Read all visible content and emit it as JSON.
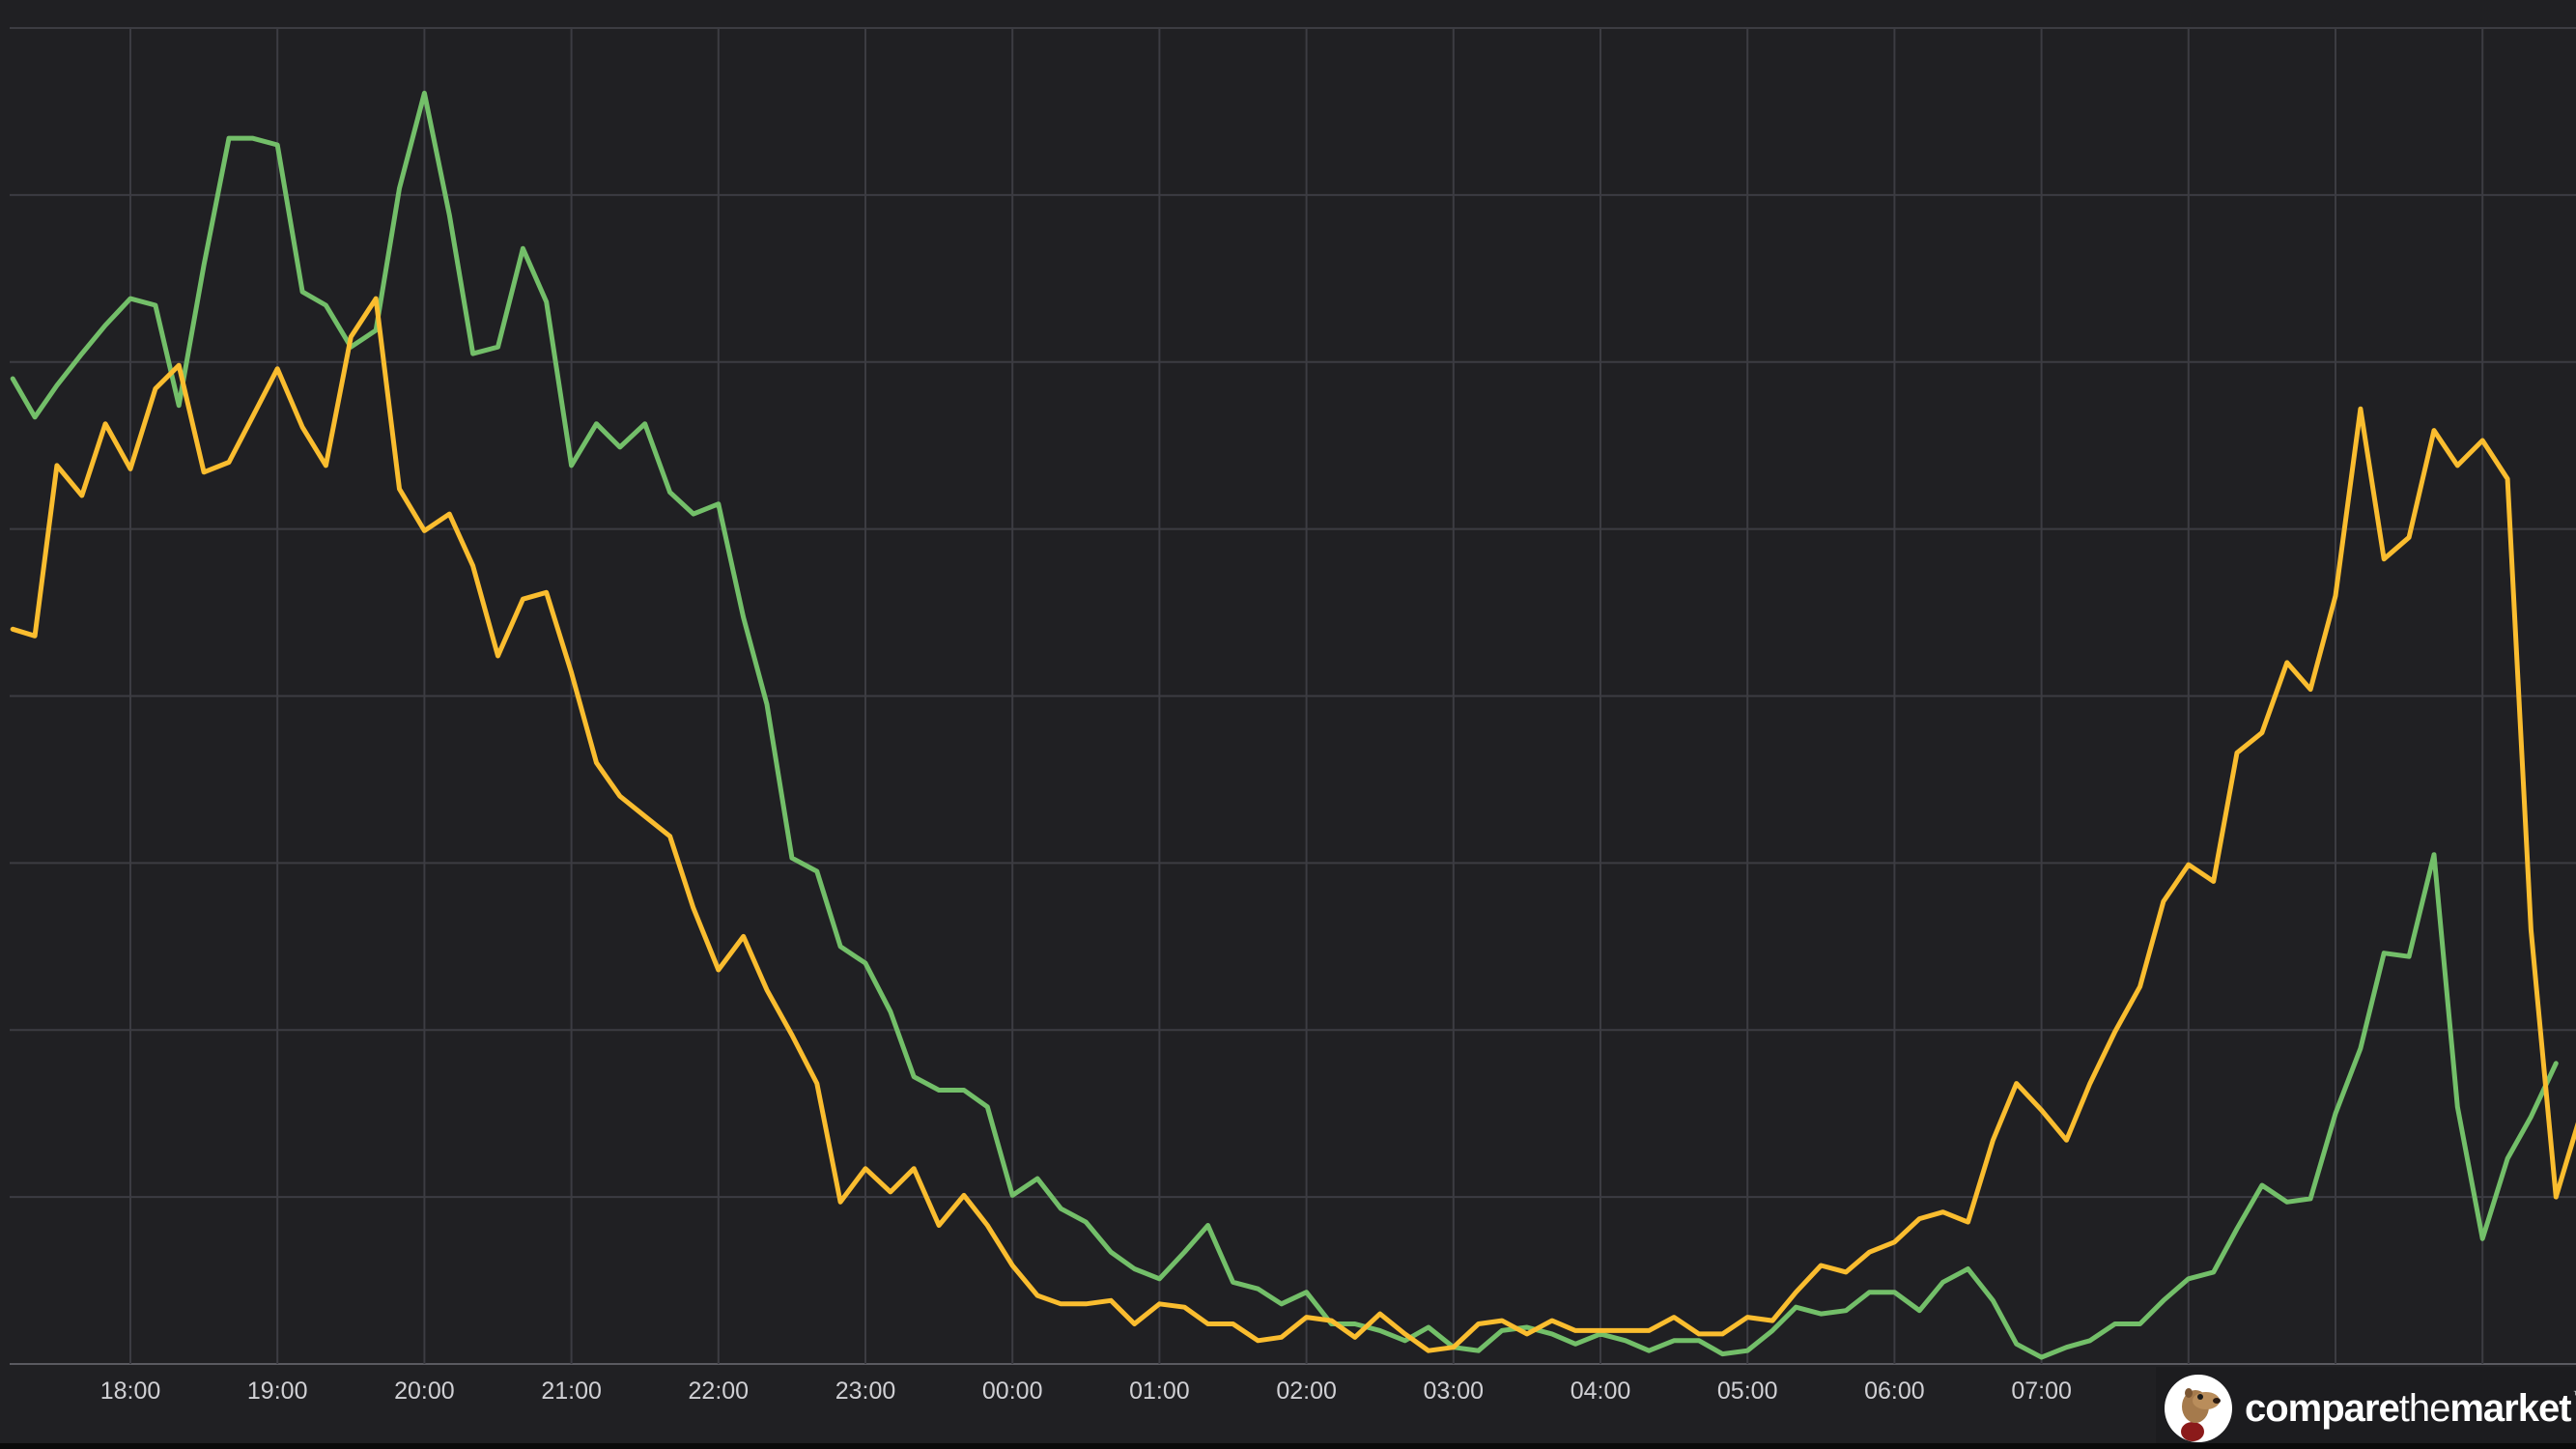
{
  "chart_data": {
    "type": "line",
    "title": "",
    "xlabel": "",
    "ylabel": "",
    "x_tick_labels": [
      "18:00",
      "19:00",
      "20:00",
      "21:00",
      "22:00",
      "23:00",
      "00:00",
      "01:00",
      "02:00",
      "03:00",
      "04:00",
      "05:00",
      "06:00",
      "07:00"
    ],
    "x_range_hours": [
      -0.8,
      16.7
    ],
    "y_range": [
      0,
      8
    ],
    "grid": true,
    "legend": "none",
    "series": [
      {
        "color": "#73bf69",
        "points": [
          [
            -0.8,
            5.9
          ],
          [
            -0.65,
            5.67
          ],
          [
            -0.5,
            5.86
          ],
          [
            -0.33,
            6.05
          ],
          [
            -0.17,
            6.22
          ],
          [
            0.0,
            6.38
          ],
          [
            0.17,
            6.34
          ],
          [
            0.33,
            5.74
          ],
          [
            0.5,
            6.58
          ],
          [
            0.67,
            7.34
          ],
          [
            0.83,
            7.34
          ],
          [
            1.0,
            7.3
          ],
          [
            1.17,
            6.42
          ],
          [
            1.33,
            6.34
          ],
          [
            1.5,
            6.09
          ],
          [
            1.67,
            6.19
          ],
          [
            1.83,
            7.04
          ],
          [
            2.0,
            7.61
          ],
          [
            2.17,
            6.88
          ],
          [
            2.33,
            6.05
          ],
          [
            2.5,
            6.09
          ],
          [
            2.67,
            6.68
          ],
          [
            2.83,
            6.36
          ],
          [
            3.0,
            5.38
          ],
          [
            3.17,
            5.63
          ],
          [
            3.33,
            5.49
          ],
          [
            3.5,
            5.63
          ],
          [
            3.67,
            5.22
          ],
          [
            3.83,
            5.09
          ],
          [
            4.0,
            5.15
          ],
          [
            4.17,
            4.47
          ],
          [
            4.33,
            3.95
          ],
          [
            4.5,
            3.03
          ],
          [
            4.67,
            2.95
          ],
          [
            4.83,
            2.5
          ],
          [
            5.0,
            2.4
          ],
          [
            5.17,
            2.11
          ],
          [
            5.33,
            1.72
          ],
          [
            5.5,
            1.64
          ],
          [
            5.67,
            1.64
          ],
          [
            5.83,
            1.54
          ],
          [
            6.0,
            1.01
          ],
          [
            6.17,
            1.11
          ],
          [
            6.33,
            0.93
          ],
          [
            6.5,
            0.85
          ],
          [
            6.67,
            0.67
          ],
          [
            6.83,
            0.57
          ],
          [
            7.0,
            0.51
          ],
          [
            7.17,
            0.67
          ],
          [
            7.33,
            0.83
          ],
          [
            7.5,
            0.49
          ],
          [
            7.67,
            0.45
          ],
          [
            7.83,
            0.36
          ],
          [
            8.0,
            0.43
          ],
          [
            8.17,
            0.24
          ],
          [
            8.33,
            0.24
          ],
          [
            8.5,
            0.2
          ],
          [
            8.67,
            0.14
          ],
          [
            8.83,
            0.22
          ],
          [
            9.0,
            0.1
          ],
          [
            9.17,
            0.08
          ],
          [
            9.33,
            0.2
          ],
          [
            9.5,
            0.22
          ],
          [
            9.67,
            0.18
          ],
          [
            9.83,
            0.12
          ],
          [
            10.0,
            0.18
          ],
          [
            10.17,
            0.14
          ],
          [
            10.33,
            0.08
          ],
          [
            10.5,
            0.14
          ],
          [
            10.67,
            0.14
          ],
          [
            10.83,
            0.06
          ],
          [
            11.0,
            0.08
          ],
          [
            11.17,
            0.2
          ],
          [
            11.33,
            0.34
          ],
          [
            11.5,
            0.3
          ],
          [
            11.67,
            0.32
          ],
          [
            11.83,
            0.43
          ],
          [
            12.0,
            0.43
          ],
          [
            12.17,
            0.32
          ],
          [
            12.33,
            0.49
          ],
          [
            12.5,
            0.57
          ],
          [
            12.67,
            0.38
          ],
          [
            12.83,
            0.12
          ],
          [
            13.0,
            0.04
          ],
          [
            13.17,
            0.1
          ],
          [
            13.33,
            0.14
          ],
          [
            13.5,
            0.24
          ],
          [
            13.67,
            0.24
          ],
          [
            13.83,
            0.38
          ],
          [
            14.0,
            0.51
          ],
          [
            14.17,
            0.55
          ],
          [
            14.33,
            0.81
          ],
          [
            14.5,
            1.07
          ],
          [
            14.67,
            0.97
          ],
          [
            14.83,
            0.99
          ],
          [
            15.0,
            1.5
          ],
          [
            15.17,
            1.89
          ],
          [
            15.33,
            2.46
          ],
          [
            15.5,
            2.44
          ],
          [
            15.67,
            3.05
          ],
          [
            15.83,
            1.54
          ],
          [
            16.0,
            0.75
          ],
          [
            16.17,
            1.23
          ],
          [
            16.33,
            1.48
          ],
          [
            16.5,
            1.8
          ]
        ]
      },
      {
        "color": "#fabd2f",
        "points": [
          [
            -0.8,
            4.4
          ],
          [
            -0.65,
            4.36
          ],
          [
            -0.5,
            5.38
          ],
          [
            -0.33,
            5.2
          ],
          [
            -0.17,
            5.63
          ],
          [
            0.0,
            5.36
          ],
          [
            0.17,
            5.84
          ],
          [
            0.33,
            5.98
          ],
          [
            0.5,
            5.34
          ],
          [
            0.67,
            5.4
          ],
          [
            0.83,
            5.67
          ],
          [
            1.0,
            5.96
          ],
          [
            1.17,
            5.61
          ],
          [
            1.33,
            5.38
          ],
          [
            1.5,
            6.15
          ],
          [
            1.67,
            6.38
          ],
          [
            1.83,
            5.24
          ],
          [
            2.0,
            4.99
          ],
          [
            2.17,
            5.09
          ],
          [
            2.33,
            4.78
          ],
          [
            2.5,
            4.24
          ],
          [
            2.67,
            4.58
          ],
          [
            2.83,
            4.62
          ],
          [
            3.0,
            4.14
          ],
          [
            3.17,
            3.6
          ],
          [
            3.33,
            3.4
          ],
          [
            3.5,
            3.28
          ],
          [
            3.67,
            3.16
          ],
          [
            3.83,
            2.73
          ],
          [
            4.0,
            2.36
          ],
          [
            4.17,
            2.56
          ],
          [
            4.33,
            2.24
          ],
          [
            4.5,
            1.97
          ],
          [
            4.67,
            1.68
          ],
          [
            4.83,
            0.97
          ],
          [
            5.0,
            1.17
          ],
          [
            5.17,
            1.03
          ],
          [
            5.33,
            1.17
          ],
          [
            5.5,
            0.83
          ],
          [
            5.67,
            1.01
          ],
          [
            5.83,
            0.83
          ],
          [
            6.0,
            0.59
          ],
          [
            6.17,
            0.41
          ],
          [
            6.33,
            0.36
          ],
          [
            6.5,
            0.36
          ],
          [
            6.67,
            0.38
          ],
          [
            6.83,
            0.24
          ],
          [
            7.0,
            0.36
          ],
          [
            7.17,
            0.34
          ],
          [
            7.33,
            0.24
          ],
          [
            7.5,
            0.24
          ],
          [
            7.67,
            0.14
          ],
          [
            7.83,
            0.16
          ],
          [
            8.0,
            0.28
          ],
          [
            8.17,
            0.26
          ],
          [
            8.33,
            0.16
          ],
          [
            8.5,
            0.3
          ],
          [
            8.67,
            0.18
          ],
          [
            8.83,
            0.08
          ],
          [
            9.0,
            0.1
          ],
          [
            9.17,
            0.24
          ],
          [
            9.33,
            0.26
          ],
          [
            9.5,
            0.18
          ],
          [
            9.67,
            0.26
          ],
          [
            9.83,
            0.2
          ],
          [
            10.0,
            0.2
          ],
          [
            10.17,
            0.2
          ],
          [
            10.33,
            0.2
          ],
          [
            10.5,
            0.28
          ],
          [
            10.67,
            0.18
          ],
          [
            10.83,
            0.18
          ],
          [
            11.0,
            0.28
          ],
          [
            11.17,
            0.26
          ],
          [
            11.33,
            0.43
          ],
          [
            11.5,
            0.59
          ],
          [
            11.67,
            0.55
          ],
          [
            11.83,
            0.67
          ],
          [
            12.0,
            0.73
          ],
          [
            12.17,
            0.87
          ],
          [
            12.33,
            0.91
          ],
          [
            12.5,
            0.85
          ],
          [
            12.67,
            1.34
          ],
          [
            12.83,
            1.68
          ],
          [
            13.0,
            1.52
          ],
          [
            13.17,
            1.34
          ],
          [
            13.33,
            1.68
          ],
          [
            13.5,
            1.99
          ],
          [
            13.67,
            2.26
          ],
          [
            13.83,
            2.77
          ],
          [
            14.0,
            2.99
          ],
          [
            14.17,
            2.89
          ],
          [
            14.33,
            3.66
          ],
          [
            14.5,
            3.78
          ],
          [
            14.67,
            4.2
          ],
          [
            14.83,
            4.04
          ],
          [
            15.0,
            4.6
          ],
          [
            15.17,
            5.72
          ],
          [
            15.33,
            4.82
          ],
          [
            15.5,
            4.95
          ],
          [
            15.67,
            5.59
          ],
          [
            15.83,
            5.38
          ],
          [
            16.0,
            5.53
          ],
          [
            16.17,
            5.3
          ],
          [
            16.33,
            2.6
          ],
          [
            16.5,
            1.0
          ],
          [
            16.67,
            1.5
          ]
        ]
      }
    ]
  },
  "watermark": {
    "part1": "compare",
    "part2": "the",
    "part3": "market",
    "tm": "™"
  }
}
